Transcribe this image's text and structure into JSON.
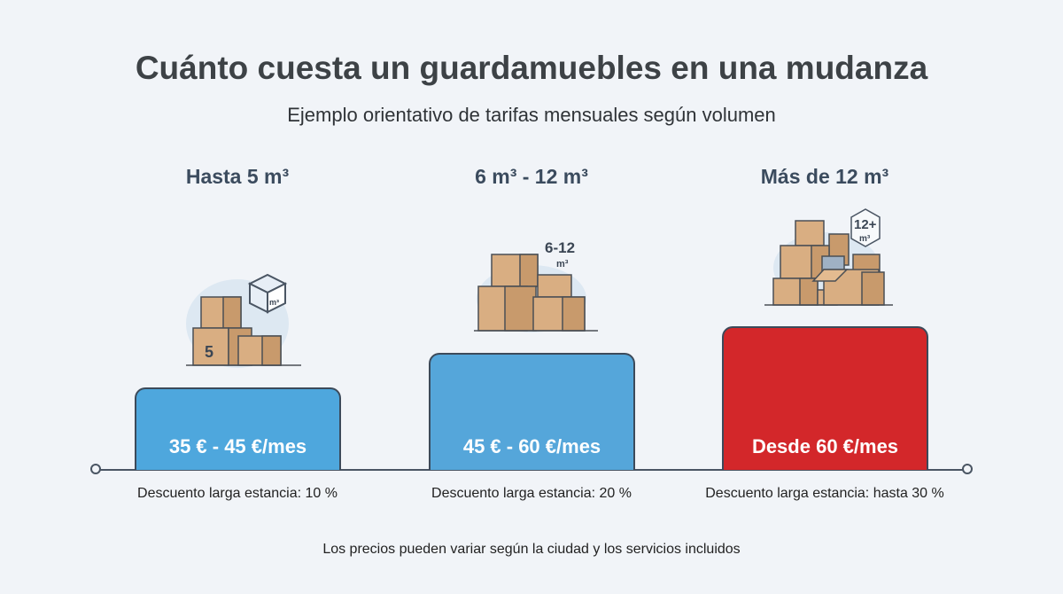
{
  "title": "Cuánto cuesta un guardamuebles en una mudanza",
  "subtitle": "Ejemplo orientativo de tarifas mensuales según volumen",
  "tiers": [
    {
      "heading": "Hasta 5 m³",
      "price": "35 € - 45 €/mes",
      "discount": "Descuento larga estancia: 10 %",
      "color": "#4ea7dd",
      "icon_label": "5",
      "badge": "m³",
      "icon": "small-boxes-icon"
    },
    {
      "heading": "6 m³ - 12 m³",
      "price": "45 € - 60 €/mes",
      "discount": "Descuento larga estancia: 20 %",
      "color": "#55a6da",
      "badge": "6-12",
      "badge_unit": "m³",
      "icon": "medium-boxes-icon"
    },
    {
      "heading": "Más de 12 m³",
      "price": "Desde 60 €/mes",
      "discount": "Descuento larga estancia: hasta 30 %",
      "color": "#d3272a",
      "badge": "12+",
      "badge_unit": "m³",
      "icon": "large-boxes-icon"
    }
  ],
  "footer": "Los precios pueden variar según la ciudad y los servicios incluidos"
}
